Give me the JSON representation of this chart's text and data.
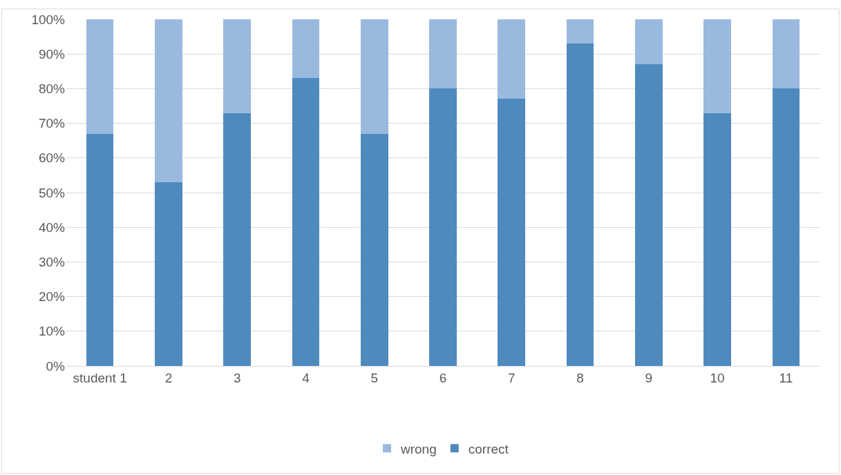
{
  "chart_data": {
    "type": "bar",
    "stacked": true,
    "categories": [
      "student 1",
      "2",
      "3",
      "4",
      "5",
      "6",
      "7",
      "8",
      "9",
      "10",
      "11"
    ],
    "series": [
      {
        "name": "correct",
        "color": "#4f8abe",
        "values": [
          67,
          53,
          73,
          83,
          67,
          80,
          77,
          93,
          87,
          73,
          80
        ]
      },
      {
        "name": "wrong",
        "color": "#99b9df",
        "values": [
          33,
          47,
          27,
          17,
          33,
          20,
          23,
          7,
          13,
          27,
          20
        ]
      }
    ],
    "ylim": [
      0,
      100
    ],
    "yticks": [
      {
        "value": 0,
        "label": "0%"
      },
      {
        "value": 10,
        "label": "10%"
      },
      {
        "value": 20,
        "label": "20%"
      },
      {
        "value": 30,
        "label": "30%"
      },
      {
        "value": 40,
        "label": "40%"
      },
      {
        "value": 50,
        "label": "50%"
      },
      {
        "value": 60,
        "label": "60%"
      },
      {
        "value": 70,
        "label": "70%"
      },
      {
        "value": 80,
        "label": "80%"
      },
      {
        "value": 90,
        "label": "90%"
      },
      {
        "value": 100,
        "label": "100%"
      }
    ],
    "grid": "y",
    "legend": "bottom"
  }
}
